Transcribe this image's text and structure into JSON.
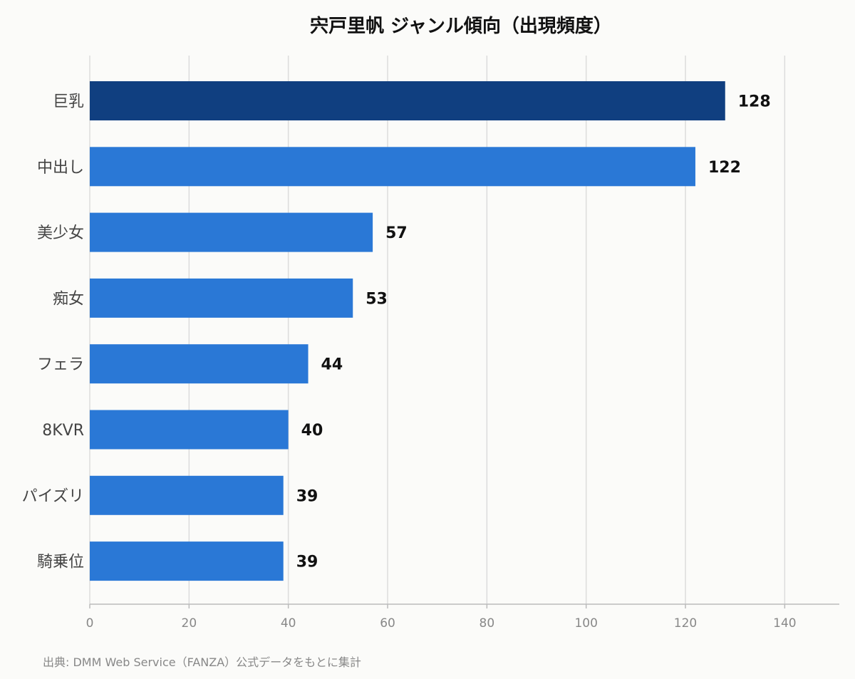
{
  "chart_data": {
    "type": "bar",
    "orientation": "horizontal",
    "title": "宍戸里帆 ジャンル傾向（出現頻度）",
    "categories": [
      "巨乳",
      "中出し",
      "美少女",
      "痴女",
      "フェラ",
      "8KVR",
      "パイズリ",
      "騎乗位"
    ],
    "values": [
      128,
      122,
      57,
      53,
      44,
      40,
      39,
      39
    ],
    "xlim": [
      0,
      151
    ],
    "xticks": [
      0,
      20,
      40,
      60,
      80,
      100,
      120,
      140
    ],
    "grid": true,
    "highlight_index": 0,
    "colors": {
      "highlight": "#103f80",
      "bar": "#2a78d6"
    }
  },
  "source_note": "出典: DMM Web Service（FANZA）公式データをもとに集計"
}
